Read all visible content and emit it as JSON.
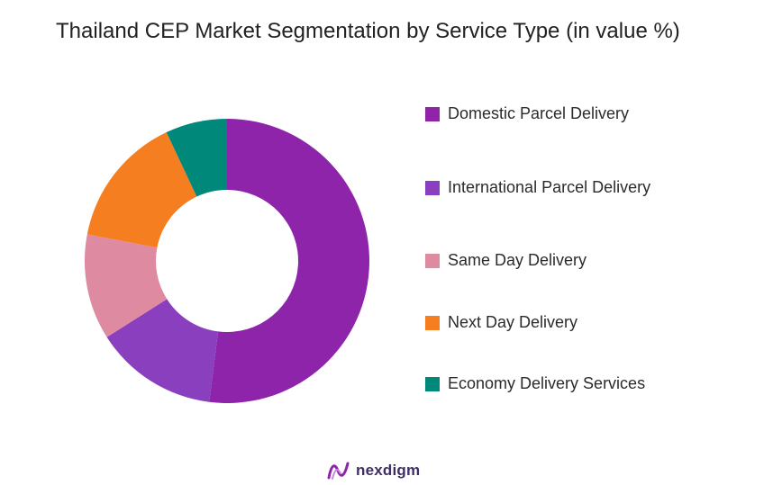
{
  "chart_data": {
    "type": "pie",
    "title": "Thailand CEP Market Segmentation by Service Type (in value %)",
    "categories": [
      "Domestic Parcel Delivery",
      "International Parcel Delivery",
      "Same Day Delivery",
      "Next Day Delivery",
      "Economy Delivery Services"
    ],
    "values": [
      52,
      14,
      12,
      15,
      7
    ],
    "colors": [
      "#8e24aa",
      "#8a3fbf",
      "#de8aa0",
      "#f57f20",
      "#00897b"
    ],
    "legend_position": "right",
    "donut": true
  },
  "logo": {
    "name": "nexdigm",
    "icon": "nexdigm-logo-icon",
    "color": "#3d2f66",
    "accent": "#8e24aa"
  }
}
